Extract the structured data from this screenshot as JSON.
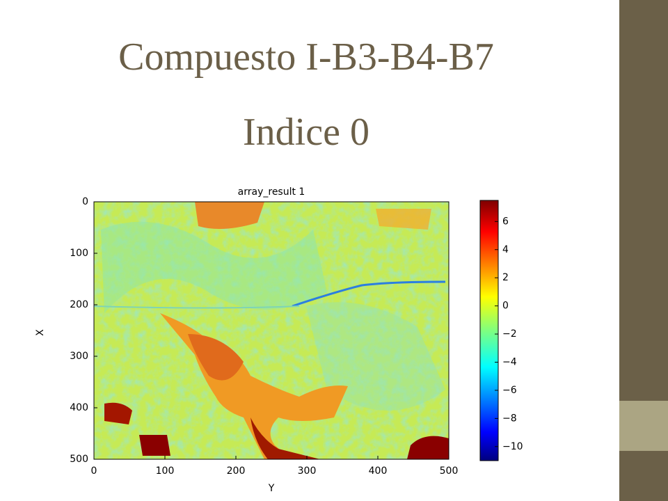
{
  "slide": {
    "title": [
      "Compuesto I-B3-B4-B7",
      "Indice 0"
    ]
  },
  "chart_data": {
    "type": "heatmap",
    "title": "array_result 1",
    "xlabel": "Y",
    "ylabel": "X",
    "xlim": [
      0,
      500
    ],
    "ylim": [
      500,
      0
    ],
    "xticks": [
      0,
      100,
      200,
      300,
      400,
      500
    ],
    "yticks": [
      0,
      100,
      200,
      300,
      400,
      500
    ],
    "colormap": "jet",
    "colorbar": {
      "lim": [
        -11,
        7.5
      ],
      "ticks": [
        {
          "value": -10,
          "label": "−10"
        },
        {
          "value": -8,
          "label": "−8"
        },
        {
          "value": -6,
          "label": "−6"
        },
        {
          "value": -4,
          "label": "−4"
        },
        {
          "value": -2,
          "label": "−2"
        },
        0,
        2,
        4,
        6
      ]
    }
  }
}
